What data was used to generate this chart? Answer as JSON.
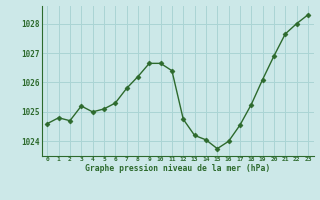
{
  "x": [
    0,
    1,
    2,
    3,
    4,
    5,
    6,
    7,
    8,
    9,
    10,
    11,
    12,
    13,
    14,
    15,
    16,
    17,
    18,
    19,
    20,
    21,
    22,
    23
  ],
  "y": [
    1024.6,
    1024.8,
    1024.7,
    1025.2,
    1025.0,
    1025.1,
    1025.3,
    1025.8,
    1026.2,
    1026.65,
    1026.65,
    1026.4,
    1024.75,
    1024.2,
    1024.05,
    1023.75,
    1024.0,
    1024.55,
    1025.25,
    1026.1,
    1026.9,
    1027.65,
    1028.0,
    1028.3
  ],
  "line_color": "#2d6a2d",
  "marker_color": "#2d6a2d",
  "bg_color": "#cce8e8",
  "grid_color": "#aad4d4",
  "xlabel": "Graphe pression niveau de la mer (hPa)",
  "xlabel_color": "#2d6a2d",
  "tick_color": "#2d6a2d",
  "ylim": [
    1023.5,
    1028.6
  ],
  "yticks": [
    1024,
    1025,
    1026,
    1027,
    1028
  ],
  "xlim": [
    -0.5,
    23.5
  ],
  "xticks": [
    0,
    1,
    2,
    3,
    4,
    5,
    6,
    7,
    8,
    9,
    10,
    11,
    12,
    13,
    14,
    15,
    16,
    17,
    18,
    19,
    20,
    21,
    22,
    23
  ]
}
